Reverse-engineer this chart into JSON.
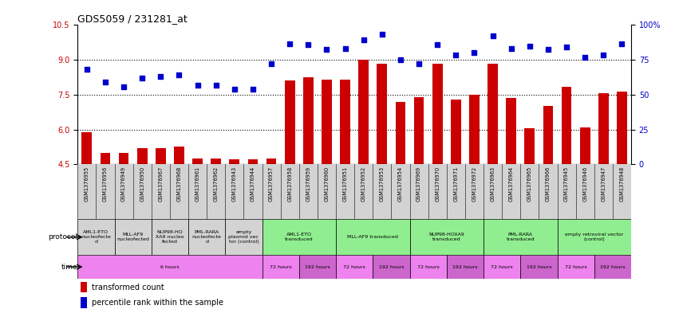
{
  "title": "GDS5059 / 231281_at",
  "samples": [
    "GSM1376955",
    "GSM1376956",
    "GSM1376949",
    "GSM1376950",
    "GSM1376967",
    "GSM1376968",
    "GSM1376961",
    "GSM1376962",
    "GSM1376943",
    "GSM1376944",
    "GSM1376957",
    "GSM1376958",
    "GSM1376959",
    "GSM1376960",
    "GSM1376951",
    "GSM1376952",
    "GSM1376953",
    "GSM1376954",
    "GSM1376969",
    "GSM1376970",
    "GSM1376971",
    "GSM1376972",
    "GSM1376963",
    "GSM1376964",
    "GSM1376965",
    "GSM1376966",
    "GSM1376945",
    "GSM1376946",
    "GSM1376947",
    "GSM1376948"
  ],
  "bar_values": [
    5.9,
    5.0,
    5.0,
    5.2,
    5.2,
    5.25,
    4.75,
    4.75,
    4.7,
    4.7,
    4.75,
    8.1,
    8.25,
    8.15,
    8.15,
    9.0,
    8.85,
    7.2,
    7.4,
    8.85,
    7.3,
    7.5,
    8.85,
    7.35,
    6.05,
    7.0,
    7.85,
    6.1,
    7.55,
    7.65
  ],
  "percentile_values": [
    8.6,
    8.05,
    7.85,
    8.2,
    8.3,
    8.35,
    7.9,
    7.9,
    7.75,
    7.75,
    8.85,
    9.7,
    9.65,
    9.45,
    9.5,
    9.85,
    10.1,
    9.0,
    8.85,
    9.65,
    9.2,
    9.3,
    10.05,
    9.5,
    9.6,
    9.45,
    9.55,
    9.1,
    9.2,
    9.7
  ],
  "ylim_min": 4.5,
  "ylim_max": 10.5,
  "yticks_left": [
    4.5,
    6.0,
    7.5,
    9.0,
    10.5
  ],
  "yticks_right_labels": [
    "0",
    "25",
    "50",
    "75",
    "100%"
  ],
  "bar_color": "#cc0000",
  "scatter_color": "#0000cc",
  "dotted_lines": [
    6.0,
    7.5,
    9.0
  ],
  "n_samples": 30,
  "proto_boundaries": [
    [
      0,
      2,
      "AML1-ETO\nnucleofecte\nd",
      "#d3d3d3"
    ],
    [
      2,
      4,
      "MLL-AF9\nnucleofected",
      "#d3d3d3"
    ],
    [
      4,
      6,
      "NUP98-HO\nXA9 nucleo\nfected",
      "#d3d3d3"
    ],
    [
      6,
      8,
      "PML-RARA\nnucleofecte\nd",
      "#d3d3d3"
    ],
    [
      8,
      10,
      "empty\nplasmid vec\ntor (control)",
      "#d3d3d3"
    ],
    [
      10,
      14,
      "AML1-ETO\ntransduced",
      "#90ee90"
    ],
    [
      14,
      18,
      "MLL-AF9 transduced",
      "#90ee90"
    ],
    [
      18,
      22,
      "NUP98-HOXA9\ntransduced",
      "#90ee90"
    ],
    [
      22,
      26,
      "PML-RARA\ntransduced",
      "#90ee90"
    ],
    [
      26,
      30,
      "empty retroviral vector\n(control)",
      "#90ee90"
    ]
  ],
  "time_boundaries": [
    [
      0,
      10,
      "6 hours",
      "#ee82ee"
    ],
    [
      10,
      12,
      "72 hours",
      "#ee82ee"
    ],
    [
      12,
      14,
      "192 hours",
      "#cc66cc"
    ],
    [
      14,
      16,
      "72 hours",
      "#ee82ee"
    ],
    [
      16,
      18,
      "192 hours",
      "#cc66cc"
    ],
    [
      18,
      20,
      "72 hours",
      "#ee82ee"
    ],
    [
      20,
      22,
      "192 hours",
      "#cc66cc"
    ],
    [
      22,
      24,
      "72 hours",
      "#ee82ee"
    ],
    [
      24,
      26,
      "192 hours",
      "#cc66cc"
    ],
    [
      26,
      28,
      "72 hours",
      "#ee82ee"
    ],
    [
      28,
      30,
      "192 hours",
      "#cc66cc"
    ]
  ],
  "xtick_bg": "#d3d3d3",
  "protocol_row_label": "protocol",
  "time_row_label": "time",
  "legend_bar_label": "transformed count",
  "legend_scatter_label": "percentile rank within the sample"
}
